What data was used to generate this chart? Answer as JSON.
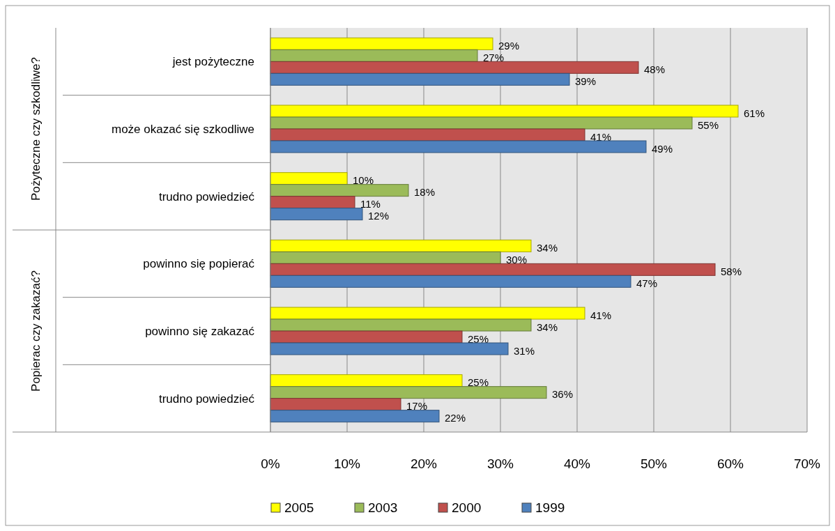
{
  "chart_data": {
    "type": "bar",
    "orientation": "horizontal",
    "categories": [
      "jest pożyteczne",
      "może okazać się szkodliwe",
      "trudno powiedzieć",
      "powinno się popierać",
      "powinno się zakazać",
      "trudno powiedzieć"
    ],
    "series": [
      {
        "name": "2005",
        "color": "#ffff00",
        "values": [
          29,
          61,
          10,
          34,
          41,
          25
        ],
        "value_labels": [
          "29%",
          "61%",
          "10%",
          "34%",
          "41%",
          "25%"
        ]
      },
      {
        "name": "2003",
        "color": "#9bbb59",
        "values": [
          27,
          55,
          18,
          30,
          34,
          36
        ],
        "value_labels": [
          "27%",
          "55%",
          "18%",
          "30%",
          "34%",
          "36%"
        ]
      },
      {
        "name": "2000",
        "color": "#c0504d",
        "values": [
          48,
          41,
          11,
          58,
          25,
          17
        ],
        "value_labels": [
          "48%",
          "41%",
          "11%",
          "58%",
          "25%",
          "17%"
        ]
      },
      {
        "name": "1999",
        "color": "#4f81bd",
        "values": [
          39,
          49,
          12,
          47,
          31,
          22
        ],
        "value_labels": [
          "39%",
          "49%",
          "12%",
          "47%",
          "31%",
          "22%"
        ]
      }
    ],
    "annotations": [
      "Pożyteczne czy szkodliwe?",
      "Popierac czy zakazać?"
    ],
    "xlim": [
      0,
      70
    ],
    "xticks": [
      {
        "value": 0,
        "label": "0%"
      },
      {
        "value": 10,
        "label": "10%"
      },
      {
        "value": 20,
        "label": "20%"
      },
      {
        "value": 30,
        "label": "30%"
      },
      {
        "value": 40,
        "label": "40%"
      },
      {
        "value": 50,
        "label": "50%"
      },
      {
        "value": 60,
        "label": "60%"
      },
      {
        "value": 70,
        "label": "70%"
      }
    ],
    "grid": "x",
    "legend": "bottom"
  }
}
